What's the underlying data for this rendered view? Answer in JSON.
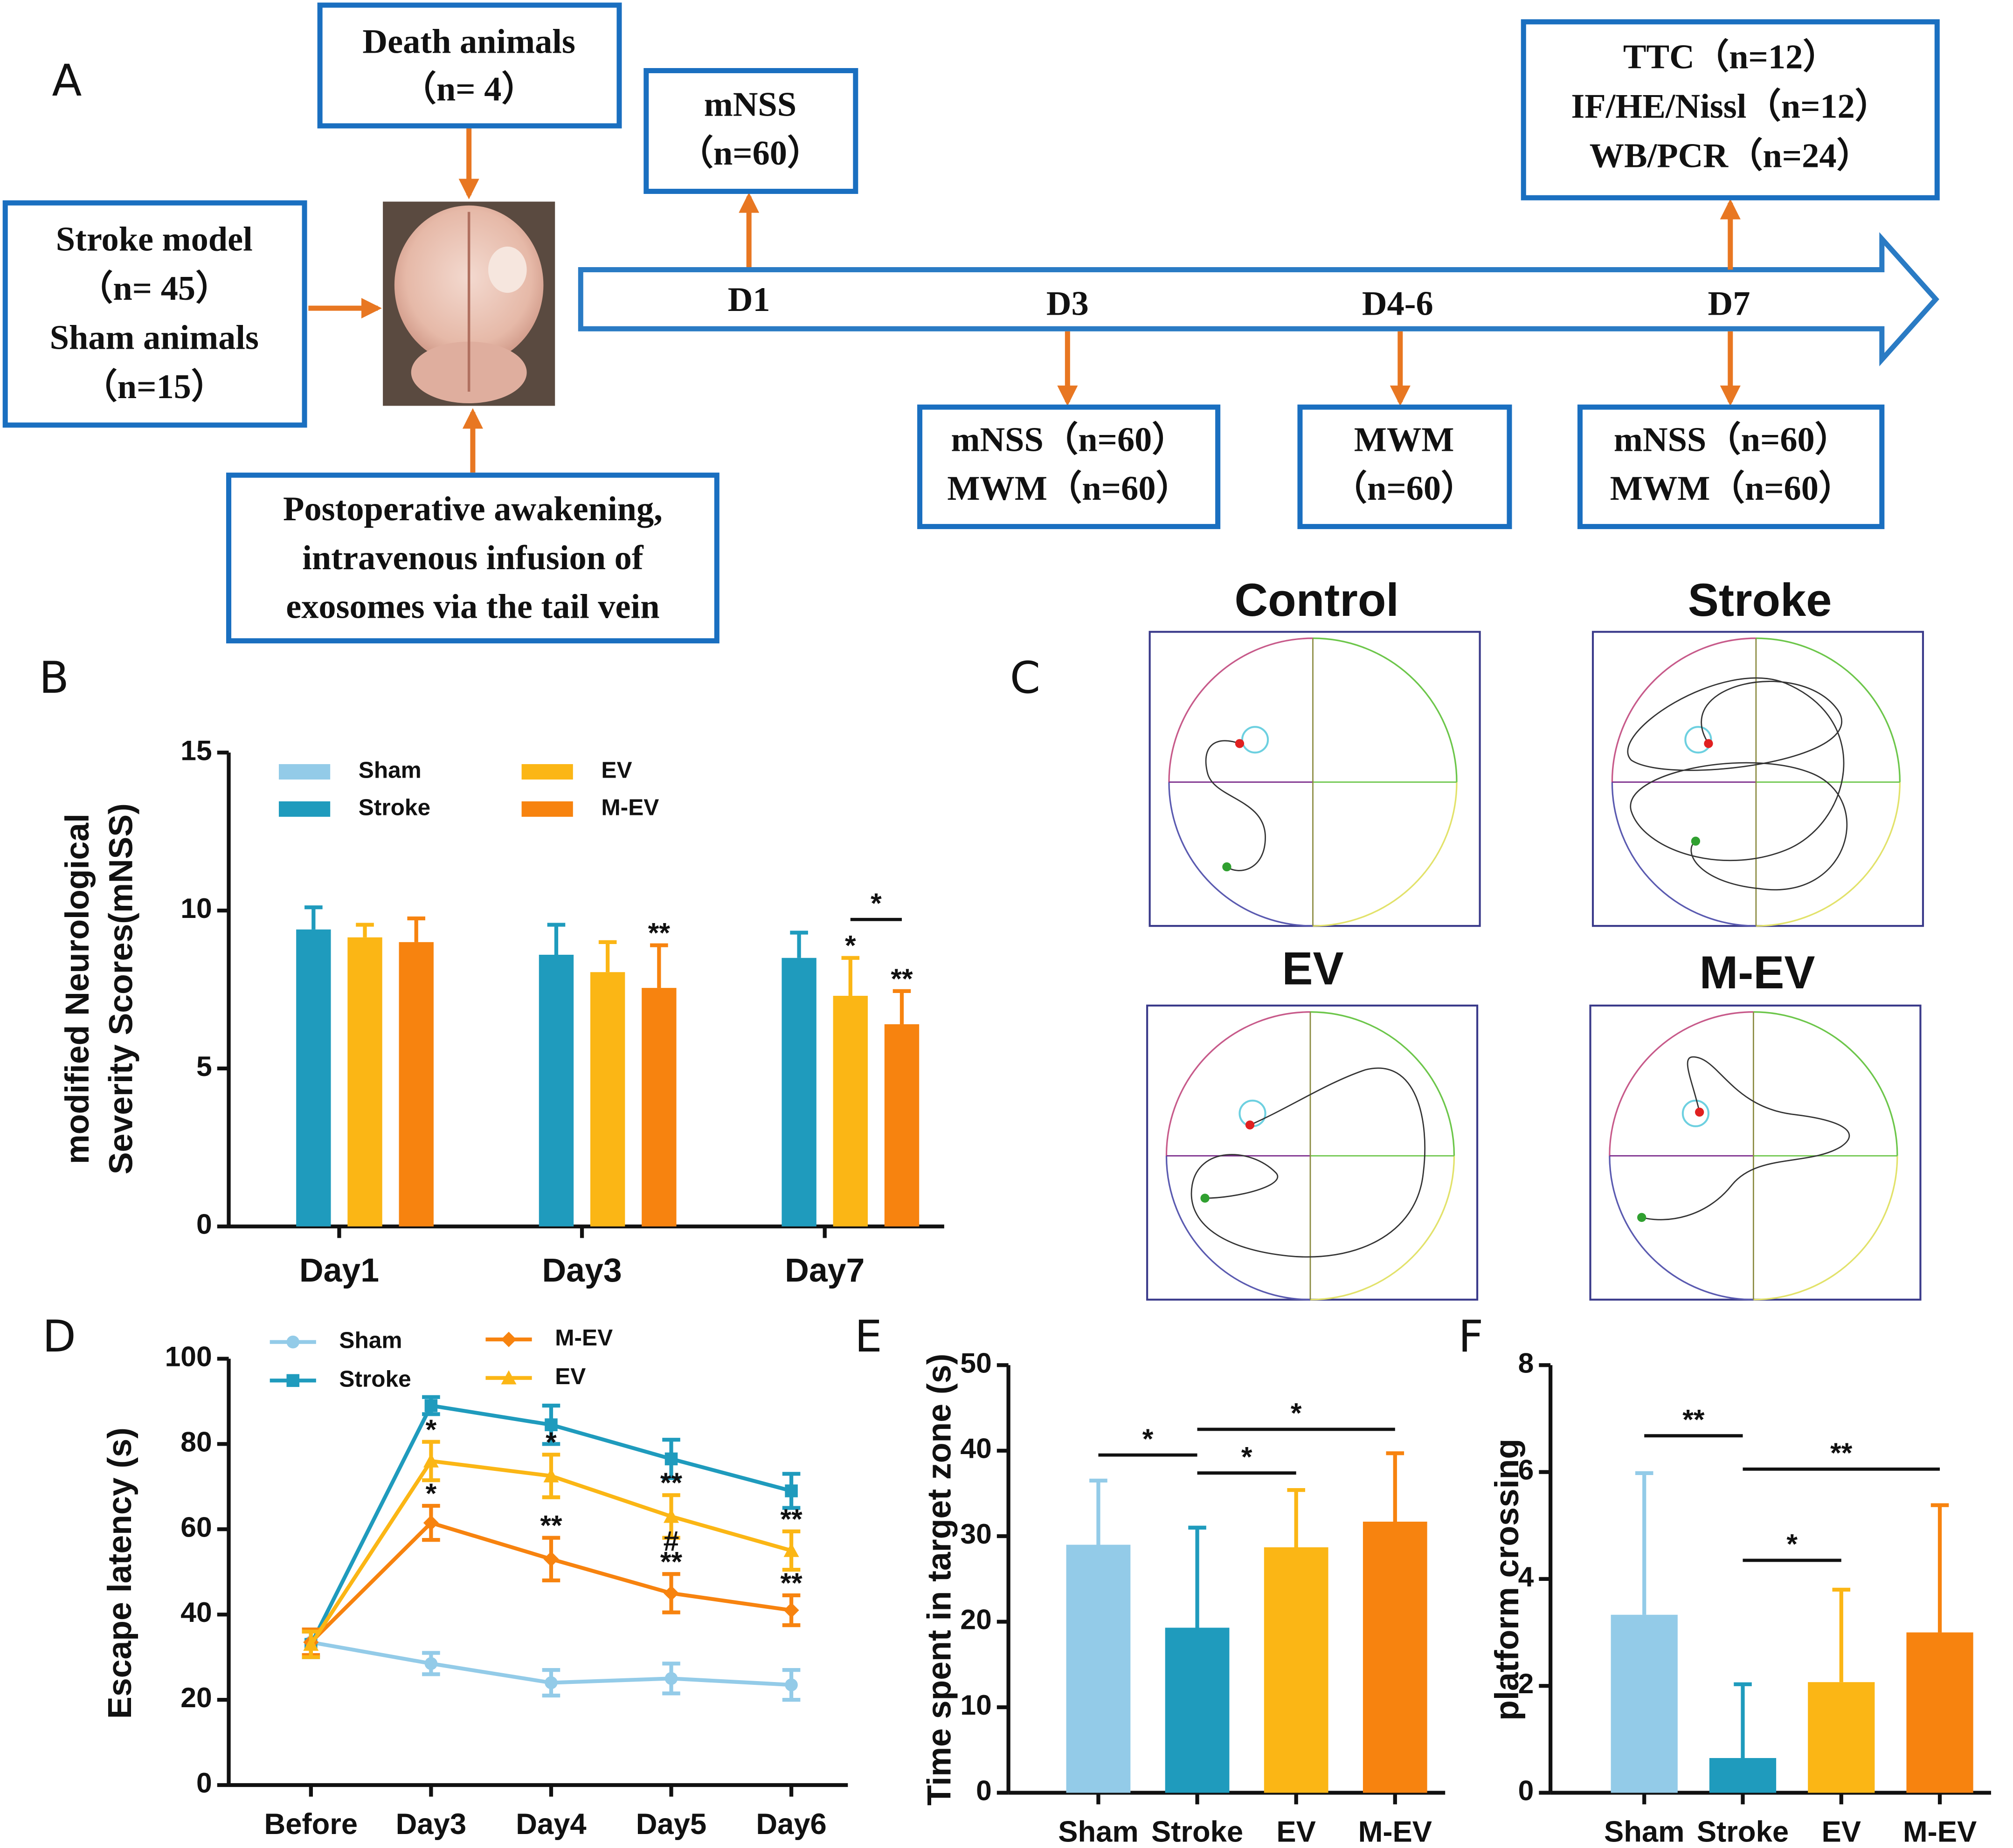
{
  "panel_labels": [
    "A",
    "B",
    "C",
    "D",
    "E",
    "F"
  ],
  "diagram": {
    "boxes": [
      {
        "lines": [
          "Death animals",
          "（n= 4）"
        ]
      },
      {
        "lines": [
          "Stroke model",
          "（n= 45）",
          "Sham animals",
          "（n=15）"
        ]
      },
      {
        "lines": [
          "Postoperative awakening,",
          "intravenous infusion of",
          "exosomes via the tail vein"
        ]
      },
      {
        "lines": [
          "mNSS",
          "（n=60）"
        ]
      },
      {
        "lines": [
          "TTC（n=12）",
          "IF/HE/Nissl（n=12）",
          "WB/PCR（n=24）"
        ]
      },
      {
        "lines": [
          "mNSS（n=60）",
          "MWM（n=60）"
        ]
      },
      {
        "lines": [
          "MWM",
          "（n=60）"
        ]
      },
      {
        "lines": [
          "mNSS（n=60）",
          "MWM（n=60）"
        ]
      }
    ],
    "timeline": [
      "D1",
      "D3",
      "D4-6",
      "D7"
    ]
  },
  "mazes": {
    "titles": [
      "Control",
      "Stroke",
      "EV",
      "M-EV"
    ]
  },
  "chart_data": [
    {
      "type": "bar",
      "ylabel": [
        "modified Neurological",
        "Severity Scores(mNSS)"
      ],
      "categories": [
        "Day1",
        "Day3",
        "Day7"
      ],
      "series": [
        {
          "name": "Sham",
          "color": "#93cbe8",
          "values": [
            0,
            0,
            0
          ],
          "errors": [
            0,
            0,
            0
          ]
        },
        {
          "name": "Stroke",
          "color": "#1f9bbd",
          "values": [
            9.4,
            8.6,
            8.5
          ],
          "errors": [
            0.7,
            0.95,
            0.8
          ]
        },
        {
          "name": "EV",
          "color": "#fbb615",
          "values": [
            9.15,
            8.05,
            7.3
          ],
          "errors": [
            0.4,
            0.95,
            1.2
          ]
        },
        {
          "name": "M-EV",
          "color": "#f7830f",
          "values": [
            9.0,
            7.55,
            6.4
          ],
          "errors": [
            0.75,
            1.35,
            1.05
          ]
        }
      ],
      "ylim": [
        0,
        15
      ],
      "yticks": [
        0,
        5,
        10,
        15
      ],
      "annotations": [
        {
          "text": "**",
          "series": "M-EV",
          "category": "Day3"
        },
        {
          "text": "*",
          "series": "EV",
          "category": "Day7"
        },
        {
          "text": "**",
          "series": "M-EV",
          "category": "Day7"
        }
      ],
      "brackets": [
        {
          "text": "*",
          "from": "EV",
          "to": "M-EV",
          "category": "Day7"
        }
      ]
    },
    {
      "type": "line",
      "ylabel": [
        "Escape latency (s)"
      ],
      "categories": [
        "Before",
        "Day3",
        "Day4",
        "Day5",
        "Day6"
      ],
      "series": [
        {
          "name": "Sham",
          "color": "#93cbe8",
          "marker": "circle",
          "values": [
            33.5,
            28.5,
            24,
            25,
            23.5
          ],
          "errors": [
            3,
            2.5,
            3,
            3.5,
            3.5
          ]
        },
        {
          "name": "Stroke",
          "color": "#1f9bbd",
          "marker": "square",
          "values": [
            33,
            89,
            84.5,
            76.5,
            69
          ],
          "errors": [
            3,
            2,
            4.5,
            4.5,
            4
          ]
        },
        {
          "name": "M-EV",
          "color": "#f7830f",
          "marker": "diamond",
          "values": [
            33.5,
            61.5,
            53,
            45,
            41
          ],
          "errors": [
            3,
            4,
            5,
            4.5,
            3.5
          ]
        },
        {
          "name": "EV",
          "color": "#fbb615",
          "marker": "triangle",
          "values": [
            33,
            76,
            72.5,
            63,
            55
          ],
          "errors": [
            3,
            4.5,
            5,
            5,
            4.5
          ]
        }
      ],
      "ylim": [
        0,
        100
      ],
      "yticks": [
        0,
        20,
        40,
        60,
        80,
        100
      ],
      "annotations": [
        {
          "text": "*",
          "series": "EV",
          "category": "Day3"
        },
        {
          "text": "*",
          "series": "M-EV",
          "category": "Day3"
        },
        {
          "text": "*",
          "series": "EV",
          "category": "Day4"
        },
        {
          "text": "**",
          "series": "M-EV",
          "category": "Day4"
        },
        {
          "text": "**",
          "series": "EV",
          "category": "Day5"
        },
        {
          "text": "**",
          "series": "M-EV",
          "category": "Day5"
        },
        {
          "text": "#",
          "series": "M-EV",
          "category": "Day5"
        },
        {
          "text": "**",
          "series": "EV",
          "category": "Day6"
        },
        {
          "text": "**",
          "series": "M-EV",
          "category": "Day6"
        }
      ]
    },
    {
      "type": "bar",
      "ylabel": [
        "Time spent in target zone (s)"
      ],
      "categories": [
        "Sham",
        "Stroke",
        "EV",
        "M-EV"
      ],
      "values": [
        29,
        19.3,
        28.7,
        31.7
      ],
      "errors": [
        7.5,
        11.7,
        6.7,
        8
      ],
      "colors": [
        "#93cbe8",
        "#1f9bbd",
        "#fbb615",
        "#f7830f"
      ],
      "ylim": [
        0,
        50
      ],
      "yticks": [
        0,
        10,
        20,
        30,
        40,
        50
      ],
      "brackets": [
        {
          "text": "*",
          "from": "Sham",
          "to": "Stroke"
        },
        {
          "text": "*",
          "from": "Stroke",
          "to": "EV"
        },
        {
          "text": "*",
          "from": "Stroke",
          "to": "M-EV"
        }
      ]
    },
    {
      "type": "bar",
      "ylabel": [
        "platform crossing"
      ],
      "categories": [
        "Sham",
        "Stroke",
        "EV",
        "M-EV"
      ],
      "values": [
        3.33,
        0.65,
        2.07,
        3.0
      ],
      "errors": [
        2.65,
        1.38,
        1.73,
        2.38
      ],
      "colors": [
        "#93cbe8",
        "#1f9bbd",
        "#fbb615",
        "#f7830f"
      ],
      "ylim": [
        0,
        8
      ],
      "yticks": [
        0,
        2,
        4,
        6,
        8
      ],
      "brackets": [
        {
          "text": "**",
          "from": "Sham",
          "to": "Stroke"
        },
        {
          "text": "*",
          "from": "Stroke",
          "to": "EV"
        },
        {
          "text": "**",
          "from": "Stroke",
          "to": "M-EV"
        }
      ]
    }
  ]
}
